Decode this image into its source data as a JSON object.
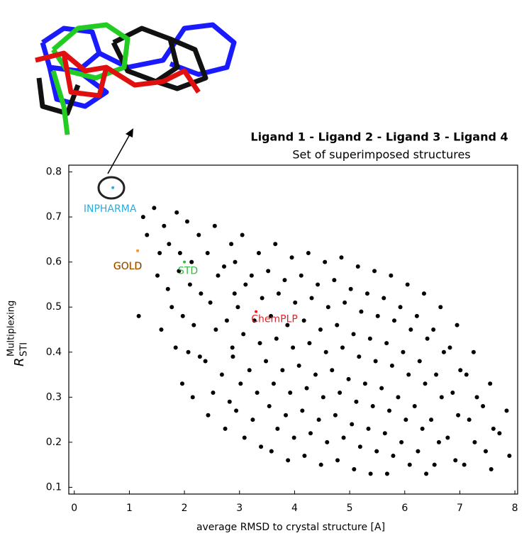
{
  "chart_data": {
    "type": "scatter",
    "header": {
      "title": "Ligand 1 - Ligand 2 - Ligand 3 - Ligand 4",
      "subtitle": "Set of superimposed structures"
    },
    "x_label": "average RMSD to crystal structure [A]",
    "y_label": {
      "main": "R",
      "sup": "Multiplexing",
      "sub": "STI"
    },
    "xlim": [
      -0.1,
      8.05
    ],
    "ylim": [
      0.085,
      0.815
    ],
    "xticks": [
      0,
      1,
      2,
      3,
      4,
      5,
      6,
      7,
      8
    ],
    "yticks": [
      0.1,
      0.2,
      0.3,
      0.4,
      0.5,
      0.6,
      0.7,
      0.8
    ],
    "color": "#000000",
    "points": [
      [
        1.25,
        0.7
      ],
      [
        1.17,
        0.48
      ],
      [
        1.45,
        0.72
      ],
      [
        1.32,
        0.66
      ],
      [
        1.51,
        0.57
      ],
      [
        1.63,
        0.68
      ],
      [
        1.55,
        0.62
      ],
      [
        1.7,
        0.54
      ],
      [
        1.58,
        0.45
      ],
      [
        1.86,
        0.71
      ],
      [
        1.72,
        0.64
      ],
      [
        1.9,
        0.58
      ],
      [
        1.77,
        0.5
      ],
      [
        1.84,
        0.41
      ],
      [
        2.05,
        0.69
      ],
      [
        1.92,
        0.62
      ],
      [
        2.1,
        0.55
      ],
      [
        1.97,
        0.48
      ],
      [
        2.07,
        0.4
      ],
      [
        1.96,
        0.33
      ],
      [
        2.26,
        0.66
      ],
      [
        2.13,
        0.6
      ],
      [
        2.3,
        0.53
      ],
      [
        2.17,
        0.46
      ],
      [
        2.28,
        0.39
      ],
      [
        2.15,
        0.3
      ],
      [
        2.55,
        0.68
      ],
      [
        2.42,
        0.62
      ],
      [
        2.61,
        0.57
      ],
      [
        2.47,
        0.51
      ],
      [
        2.57,
        0.45
      ],
      [
        2.38,
        0.38
      ],
      [
        2.52,
        0.31
      ],
      [
        2.43,
        0.26
      ],
      [
        2.85,
        0.64
      ],
      [
        2.72,
        0.59
      ],
      [
        2.91,
        0.53
      ],
      [
        2.77,
        0.47
      ],
      [
        2.87,
        0.41
      ],
      [
        2.68,
        0.35
      ],
      [
        2.82,
        0.29
      ],
      [
        2.74,
        0.23
      ],
      [
        3.05,
        0.66
      ],
      [
        2.92,
        0.6
      ],
      [
        3.11,
        0.55
      ],
      [
        2.97,
        0.5
      ],
      [
        3.07,
        0.44
      ],
      [
        2.88,
        0.39
      ],
      [
        3.02,
        0.33
      ],
      [
        2.94,
        0.27
      ],
      [
        3.09,
        0.21
      ],
      [
        3.35,
        0.62
      ],
      [
        3.22,
        0.57
      ],
      [
        3.41,
        0.52
      ],
      [
        3.27,
        0.47
      ],
      [
        3.37,
        0.42
      ],
      [
        3.18,
        0.36
      ],
      [
        3.32,
        0.31
      ],
      [
        3.24,
        0.25
      ],
      [
        3.39,
        0.19
      ],
      [
        3.65,
        0.64
      ],
      [
        3.52,
        0.58
      ],
      [
        3.71,
        0.53
      ],
      [
        3.57,
        0.48
      ],
      [
        3.67,
        0.43
      ],
      [
        3.48,
        0.38
      ],
      [
        3.62,
        0.33
      ],
      [
        3.54,
        0.28
      ],
      [
        3.69,
        0.23
      ],
      [
        3.58,
        0.18
      ],
      [
        3.95,
        0.61
      ],
      [
        3.82,
        0.56
      ],
      [
        4.01,
        0.51
      ],
      [
        3.87,
        0.46
      ],
      [
        3.97,
        0.41
      ],
      [
        3.78,
        0.36
      ],
      [
        3.92,
        0.31
      ],
      [
        3.84,
        0.26
      ],
      [
        3.99,
        0.21
      ],
      [
        3.88,
        0.16
      ],
      [
        4.25,
        0.62
      ],
      [
        4.12,
        0.57
      ],
      [
        4.31,
        0.52
      ],
      [
        4.17,
        0.47
      ],
      [
        4.27,
        0.42
      ],
      [
        4.08,
        0.37
      ],
      [
        4.22,
        0.32
      ],
      [
        4.14,
        0.27
      ],
      [
        4.29,
        0.22
      ],
      [
        4.18,
        0.17
      ],
      [
        4.55,
        0.6
      ],
      [
        4.42,
        0.55
      ],
      [
        4.61,
        0.5
      ],
      [
        4.47,
        0.45
      ],
      [
        4.57,
        0.4
      ],
      [
        4.38,
        0.35
      ],
      [
        4.52,
        0.3
      ],
      [
        4.44,
        0.25
      ],
      [
        4.59,
        0.2
      ],
      [
        4.48,
        0.15
      ],
      [
        4.85,
        0.61
      ],
      [
        4.72,
        0.56
      ],
      [
        4.91,
        0.51
      ],
      [
        4.77,
        0.46
      ],
      [
        4.87,
        0.41
      ],
      [
        4.68,
        0.36
      ],
      [
        4.82,
        0.31
      ],
      [
        4.74,
        0.26
      ],
      [
        4.89,
        0.21
      ],
      [
        4.78,
        0.16
      ],
      [
        5.15,
        0.59
      ],
      [
        5.02,
        0.54
      ],
      [
        5.21,
        0.49
      ],
      [
        5.07,
        0.44
      ],
      [
        5.17,
        0.39
      ],
      [
        4.98,
        0.34
      ],
      [
        5.12,
        0.29
      ],
      [
        5.04,
        0.24
      ],
      [
        5.19,
        0.19
      ],
      [
        5.08,
        0.14
      ],
      [
        5.45,
        0.58
      ],
      [
        5.32,
        0.53
      ],
      [
        5.51,
        0.48
      ],
      [
        5.37,
        0.43
      ],
      [
        5.47,
        0.38
      ],
      [
        5.28,
        0.33
      ],
      [
        5.42,
        0.28
      ],
      [
        5.34,
        0.23
      ],
      [
        5.49,
        0.18
      ],
      [
        5.38,
        0.13
      ],
      [
        5.75,
        0.57
      ],
      [
        5.62,
        0.52
      ],
      [
        5.81,
        0.47
      ],
      [
        5.67,
        0.42
      ],
      [
        5.77,
        0.37
      ],
      [
        5.58,
        0.32
      ],
      [
        5.72,
        0.27
      ],
      [
        5.64,
        0.22
      ],
      [
        5.79,
        0.17
      ],
      [
        5.68,
        0.13
      ],
      [
        6.05,
        0.55
      ],
      [
        5.92,
        0.5
      ],
      [
        6.11,
        0.45
      ],
      [
        5.97,
        0.4
      ],
      [
        6.07,
        0.35
      ],
      [
        5.88,
        0.3
      ],
      [
        6.02,
        0.25
      ],
      [
        5.94,
        0.2
      ],
      [
        6.09,
        0.15
      ],
      [
        6.35,
        0.53
      ],
      [
        6.22,
        0.48
      ],
      [
        6.41,
        0.43
      ],
      [
        6.27,
        0.38
      ],
      [
        6.37,
        0.33
      ],
      [
        6.18,
        0.28
      ],
      [
        6.32,
        0.23
      ],
      [
        6.24,
        0.18
      ],
      [
        6.39,
        0.13
      ],
      [
        6.65,
        0.5
      ],
      [
        6.52,
        0.45
      ],
      [
        6.71,
        0.4
      ],
      [
        6.57,
        0.35
      ],
      [
        6.67,
        0.3
      ],
      [
        6.48,
        0.25
      ],
      [
        6.62,
        0.2
      ],
      [
        6.54,
        0.15
      ],
      [
        6.95,
        0.46
      ],
      [
        6.82,
        0.41
      ],
      [
        7.01,
        0.36
      ],
      [
        6.87,
        0.31
      ],
      [
        6.97,
        0.26
      ],
      [
        6.78,
        0.21
      ],
      [
        6.92,
        0.16
      ],
      [
        7.25,
        0.4
      ],
      [
        7.12,
        0.35
      ],
      [
        7.31,
        0.3
      ],
      [
        7.17,
        0.25
      ],
      [
        7.27,
        0.2
      ],
      [
        7.08,
        0.15
      ],
      [
        7.55,
        0.33
      ],
      [
        7.42,
        0.28
      ],
      [
        7.61,
        0.23
      ],
      [
        7.47,
        0.18
      ],
      [
        7.57,
        0.14
      ],
      [
        7.85,
        0.27
      ],
      [
        7.72,
        0.22
      ],
      [
        7.9,
        0.17
      ]
    ],
    "highlights": [
      {
        "label": "INPHARMA",
        "color": "#29abe2",
        "x": 0.7,
        "y": 0.765
      },
      {
        "label": "GOLD",
        "color": "#f7931e",
        "x": 1.15,
        "y": 0.625
      },
      {
        "label": "STD",
        "color": "#39b54a",
        "x": 2.0,
        "y": 0.6
      },
      {
        "label": "ChemPLP",
        "color": "#ed1c24",
        "x": 3.3,
        "y": 0.49
      }
    ]
  }
}
